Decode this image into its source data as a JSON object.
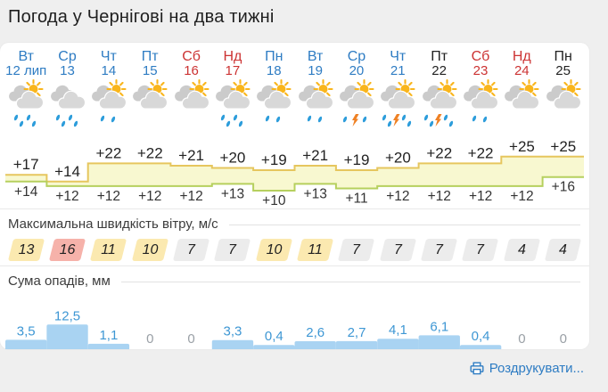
{
  "page": {
    "title": "Погода у Чернігові на два тижні"
  },
  "sections": {
    "wind_label": "Максимальна швидкість вітру, м/с",
    "precip_label": "Сума опадів, мм"
  },
  "footer": {
    "print_label": "Роздрукувати..."
  },
  "colors": {
    "day_link": "#2e7cc3",
    "day_weekend": "#cc3333",
    "day_plain": "#222222",
    "band_fill": "#f8f8d0",
    "band_top": "#e6c65e",
    "band_bottom": "#b6d05e",
    "temp_max_text": "#222222",
    "temp_min_text": "#333333",
    "badge_yellow": "#fbe9b0",
    "badge_red": "#f6b2aa",
    "badge_gray": "#ececec",
    "precip_bar": "#a9d3f2",
    "precip_value": "#3e97d4",
    "precip_zero": "#9aa0a6",
    "link": "#2e7cc3",
    "cloud_front": "#d8d8d8",
    "cloud_back": "#cbcbcb",
    "sun": "#f9b51b",
    "raindrop": "#2d9ddb",
    "bolt": "#ef8124"
  },
  "days": [
    {
      "name": "Вт",
      "date": "12 лип",
      "style": "link",
      "tmax_label": "+17",
      "tmax": 17,
      "tmin_label": "+14",
      "tmin": 14,
      "wind": "13",
      "wind_style": "yellow",
      "precip_label": "3,5",
      "precip": 3.5,
      "icon": {
        "sun": true,
        "drops": 4,
        "bolt": false
      }
    },
    {
      "name": "Ср",
      "date": "13",
      "style": "link",
      "tmax_label": "+14",
      "tmax": 14,
      "tmin_label": "+12",
      "tmin": 12,
      "wind": "16",
      "wind_style": "red",
      "precip_label": "12,5",
      "precip": 12.5,
      "icon": {
        "sun": false,
        "drops": 4,
        "bolt": false
      }
    },
    {
      "name": "Чт",
      "date": "14",
      "style": "link",
      "tmax_label": "+22",
      "tmax": 22,
      "tmin_label": "+12",
      "tmin": 12,
      "wind": "11",
      "wind_style": "yellow",
      "precip_label": "1,1",
      "precip": 1.1,
      "icon": {
        "sun": true,
        "drops": 2,
        "bolt": false
      }
    },
    {
      "name": "Пт",
      "date": "15",
      "style": "link",
      "tmax_label": "+22",
      "tmax": 22,
      "tmin_label": "+12",
      "tmin": 12,
      "wind": "10",
      "wind_style": "yellow",
      "precip_label": "0",
      "precip": 0,
      "icon": {
        "sun": true,
        "drops": 0,
        "bolt": false
      }
    },
    {
      "name": "Сб",
      "date": "16",
      "style": "weekend-link",
      "tmax_label": "+21",
      "tmax": 21,
      "tmin_label": "+12",
      "tmin": 12,
      "wind": "7",
      "wind_style": "gray",
      "precip_label": "0",
      "precip": 0,
      "icon": {
        "sun": true,
        "drops": 0,
        "bolt": false
      }
    },
    {
      "name": "Нд",
      "date": "17",
      "style": "weekend-link",
      "tmax_label": "+20",
      "tmax": 20,
      "tmin_label": "+13",
      "tmin": 13,
      "wind": "7",
      "wind_style": "gray",
      "precip_label": "3,3",
      "precip": 3.3,
      "icon": {
        "sun": true,
        "drops": 4,
        "bolt": false
      }
    },
    {
      "name": "Пн",
      "date": "18",
      "style": "link",
      "tmax_label": "+19",
      "tmax": 19,
      "tmin_label": "+10",
      "tmin": 10,
      "wind": "10",
      "wind_style": "yellow",
      "precip_label": "0,4",
      "precip": 0.4,
      "icon": {
        "sun": true,
        "drops": 2,
        "bolt": false
      }
    },
    {
      "name": "Вт",
      "date": "19",
      "style": "link",
      "tmax_label": "+21",
      "tmax": 21,
      "tmin_label": "+13",
      "tmin": 13,
      "wind": "11",
      "wind_style": "yellow",
      "precip_label": "2,6",
      "precip": 2.6,
      "icon": {
        "sun": true,
        "drops": 2,
        "bolt": false
      }
    },
    {
      "name": "Ср",
      "date": "20",
      "style": "link",
      "tmax_label": "+19",
      "tmax": 19,
      "tmin_label": "+11",
      "tmin": 11,
      "wind": "7",
      "wind_style": "gray",
      "precip_label": "2,7",
      "precip": 2.7,
      "icon": {
        "sun": true,
        "drops": 2,
        "bolt": true
      }
    },
    {
      "name": "Чт",
      "date": "21",
      "style": "link",
      "tmax_label": "+20",
      "tmax": 20,
      "tmin_label": "+12",
      "tmin": 12,
      "wind": "7",
      "wind_style": "gray",
      "precip_label": "4,1",
      "precip": 4.1,
      "icon": {
        "sun": true,
        "drops": 4,
        "bolt": true
      }
    },
    {
      "name": "Пт",
      "date": "22",
      "style": "plain",
      "tmax_label": "+22",
      "tmax": 22,
      "tmin_label": "+12",
      "tmin": 12,
      "wind": "7",
      "wind_style": "gray",
      "precip_label": "6,1",
      "precip": 6.1,
      "icon": {
        "sun": true,
        "drops": 4,
        "bolt": true
      }
    },
    {
      "name": "Сб",
      "date": "23",
      "style": "weekend",
      "tmax_label": "+22",
      "tmax": 22,
      "tmin_label": "+12",
      "tmin": 12,
      "wind": "7",
      "wind_style": "gray",
      "precip_label": "0,4",
      "precip": 0.4,
      "icon": {
        "sun": true,
        "drops": 2,
        "bolt": false
      }
    },
    {
      "name": "Нд",
      "date": "24",
      "style": "weekend",
      "tmax_label": "+25",
      "tmax": 25,
      "tmin_label": "+12",
      "tmin": 12,
      "wind": "4",
      "wind_style": "gray",
      "precip_label": "0",
      "precip": 0,
      "icon": {
        "sun": true,
        "drops": 0,
        "bolt": false
      }
    },
    {
      "name": "Пн",
      "date": "25",
      "style": "plain",
      "tmax_label": "+25",
      "tmax": 25,
      "tmin_label": "+16",
      "tmin": 16,
      "wind": "4",
      "wind_style": "gray",
      "precip_label": "0",
      "precip": 0,
      "icon": {
        "sun": true,
        "drops": 0,
        "bolt": false
      }
    }
  ],
  "chart_data": [
    {
      "type": "area",
      "title": "Temperature band (max/min, °C)",
      "categories": [
        "12",
        "13",
        "14",
        "15",
        "16",
        "17",
        "18",
        "19",
        "20",
        "21",
        "22",
        "23",
        "24",
        "25"
      ],
      "series": [
        {
          "name": "tmax",
          "values": [
            17,
            14,
            22,
            22,
            21,
            20,
            19,
            21,
            19,
            20,
            22,
            22,
            25,
            25
          ]
        },
        {
          "name": "tmin",
          "values": [
            14,
            12,
            12,
            12,
            12,
            13,
            10,
            13,
            11,
            12,
            12,
            12,
            12,
            16
          ]
        }
      ]
    },
    {
      "type": "bar",
      "title": "Сума опадів, мм",
      "categories": [
        "12",
        "13",
        "14",
        "15",
        "16",
        "17",
        "18",
        "19",
        "20",
        "21",
        "22",
        "23",
        "24",
        "25"
      ],
      "values": [
        3.5,
        12.5,
        1.1,
        0,
        0,
        3.3,
        0.4,
        2.6,
        2.7,
        4.1,
        6.1,
        0.4,
        0,
        0
      ]
    },
    {
      "type": "table",
      "title": "Максимальна швидкість вітру, м/с",
      "categories": [
        "12",
        "13",
        "14",
        "15",
        "16",
        "17",
        "18",
        "19",
        "20",
        "21",
        "22",
        "23",
        "24",
        "25"
      ],
      "values": [
        13,
        16,
        11,
        10,
        7,
        7,
        10,
        11,
        7,
        7,
        7,
        7,
        4,
        4
      ]
    }
  ]
}
